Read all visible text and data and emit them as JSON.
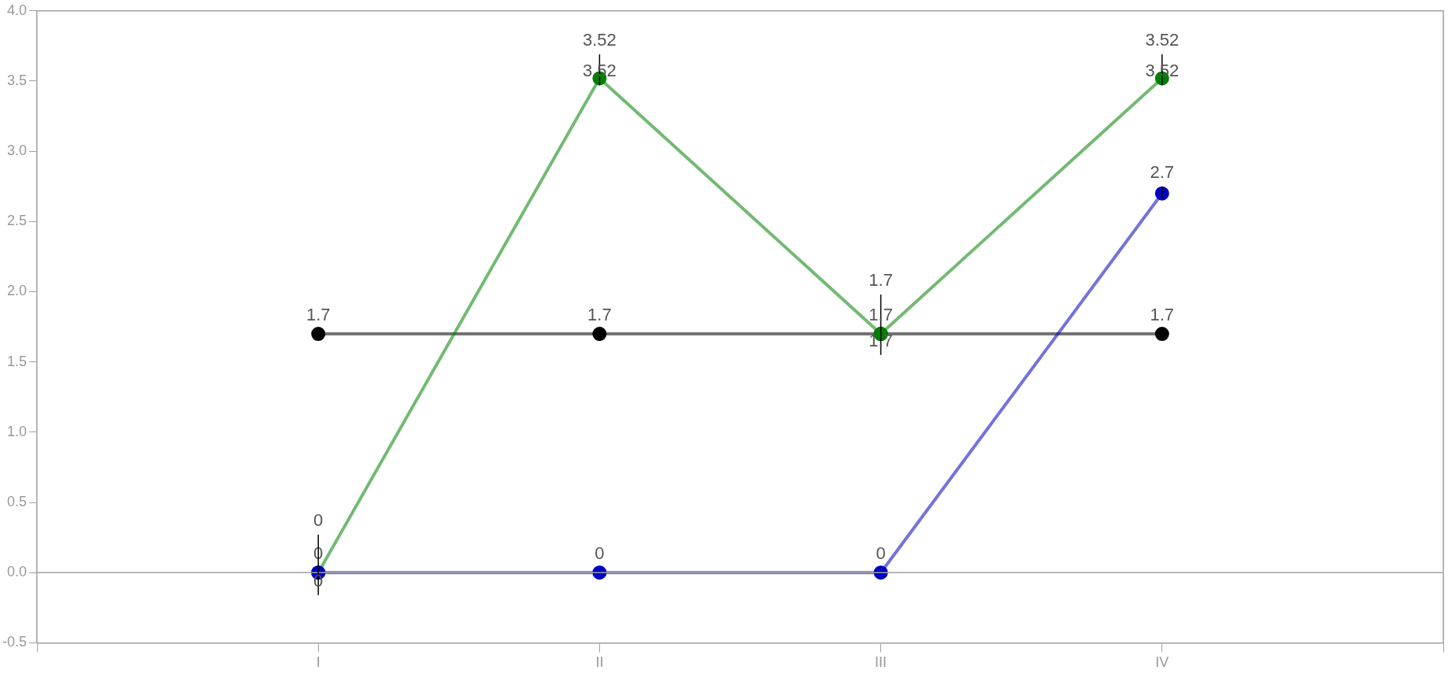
{
  "chart_data": {
    "type": "line",
    "categories": [
      "I",
      "II",
      "III",
      "IV"
    ],
    "series": [
      {
        "color": "#000000",
        "values": [
          1.7,
          1.7,
          1.7,
          1.7
        ]
      },
      {
        "color": "#008000",
        "values": [
          0,
          3.52,
          1.7,
          3.52
        ],
        "errors": [
          [
            -0.16,
            0.27
          ],
          [
            3.47,
            3.69
          ],
          [
            1.55,
            1.98
          ],
          [
            3.47,
            3.69
          ]
        ]
      },
      {
        "color": "#0000c0",
        "values": [
          0,
          0,
          0,
          2.7
        ],
        "errors": [
          null,
          null,
          null,
          [
            2.67,
            2.75
          ]
        ]
      }
    ],
    "ylim": [
      -0.5,
      4.0
    ],
    "yticks": [
      {
        "value": -0.5,
        "label": "-0.5"
      },
      {
        "value": 0,
        "label": "0.0"
      },
      {
        "value": 0.5,
        "label": "0.5"
      },
      {
        "value": 1,
        "label": "1.0"
      },
      {
        "value": 1.5,
        "label": "1.5"
      },
      {
        "value": 2,
        "label": "2.0"
      },
      {
        "value": 2.5,
        "label": "2.5"
      },
      {
        "value": 3,
        "label": "3.0"
      },
      {
        "value": 3.5,
        "label": "3.5"
      },
      {
        "value": 4,
        "label": "4.0"
      }
    ],
    "ref_lines": [
      {
        "axis": "y",
        "value": 0,
        "color": "#a0a0a0"
      }
    ],
    "annotations": [
      {
        "text": "0",
        "x": "I",
        "y": 0.27
      },
      {
        "text": "3.52",
        "x": "II",
        "y": 3.69
      },
      {
        "text": "1.7",
        "x": "III",
        "y": 1.98
      },
      {
        "text": "3.52",
        "x": "IV",
        "y": 3.69
      }
    ],
    "grid": false,
    "legend": false,
    "marker": "circle",
    "line_style": "solid",
    "data_labels": true
  }
}
